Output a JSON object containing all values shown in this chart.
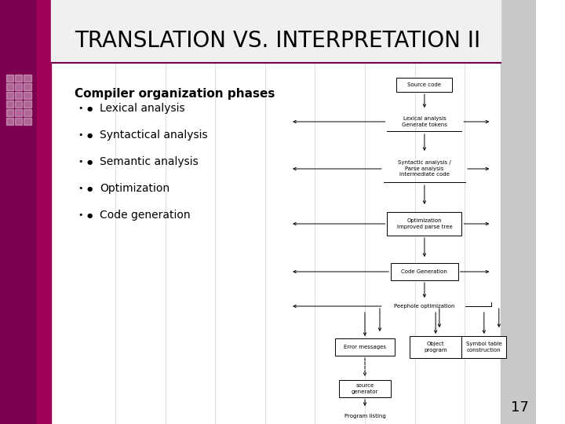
{
  "title": "TRANSLATION VS. INTERPRETATION II",
  "title_fontsize": 20,
  "title_color": "#000000",
  "bg_color": "#ffffff",
  "left_bar_dark": "#7B0050",
  "left_bar_medium": "#A0005A",
  "slide_number": "17",
  "bullet_header": "Compiler organization phases",
  "bullets": [
    "Lexical analysis",
    "Syntactical analysis",
    "Semantic analysis",
    "Optimization",
    "Code generation"
  ],
  "col_lines_color": "#e0e0e0",
  "right_bar_color": "#c8c8c8",
  "title_bg_color": "#f0f0f0"
}
